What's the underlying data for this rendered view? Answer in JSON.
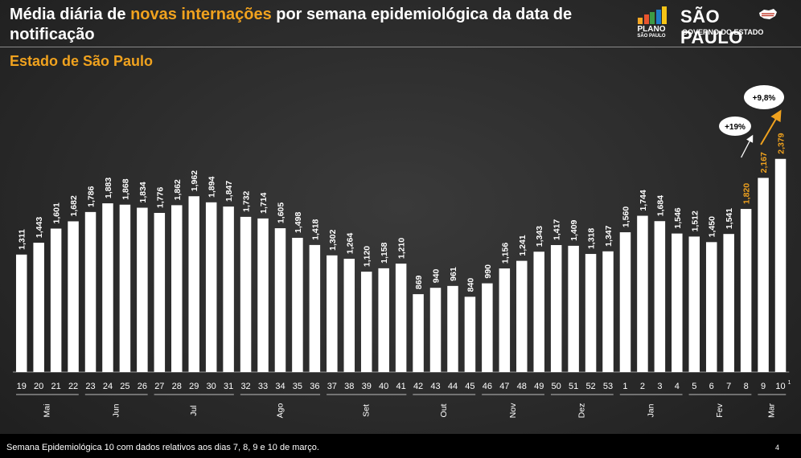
{
  "header": {
    "title_part1": "Média diária de ",
    "title_highlight": "novas internações",
    "title_part2": " por semana epidemiológica da data de notificação",
    "subtitle": "Estado de São Paulo",
    "logo_plano_line1": "PLANO",
    "logo_plano_line2": "SÃO PAULO",
    "logo_sp_line1": "SÃO PAULO",
    "logo_sp_line2": "GOVERNO DO ESTADO"
  },
  "colors": {
    "accent": "#f0a21e",
    "bar": "#ffffff",
    "bar_highlight": "#f0a21e",
    "background": "#2b2b2b",
    "plano_bars": [
      "#f5a623",
      "#e8542f",
      "#3d9b45",
      "#1f7ac7",
      "#f5c518"
    ]
  },
  "chart_data": {
    "type": "bar",
    "title": "Média diária de novas internações por semana epidemiológica da data de notificação",
    "subtitle": "Estado de São Paulo",
    "categories": [
      "19",
      "20",
      "21",
      "22",
      "23",
      "24",
      "25",
      "26",
      "27",
      "28",
      "29",
      "30",
      "31",
      "32",
      "33",
      "34",
      "35",
      "36",
      "37",
      "38",
      "39",
      "40",
      "41",
      "42",
      "43",
      "44",
      "45",
      "46",
      "47",
      "48",
      "49",
      "50",
      "51",
      "52",
      "53",
      "1",
      "2",
      "3",
      "4",
      "5",
      "6",
      "7",
      "8",
      "9",
      "10"
    ],
    "values": [
      1311,
      1443,
      1601,
      1682,
      1786,
      1883,
      1868,
      1834,
      1776,
      1862,
      1962,
      1894,
      1847,
      1732,
      1714,
      1605,
      1498,
      1418,
      1302,
      1264,
      1120,
      1158,
      1210,
      869,
      940,
      961,
      840,
      990,
      1156,
      1241,
      1343,
      1417,
      1409,
      1318,
      1347,
      1560,
      1744,
      1684,
      1546,
      1512,
      1450,
      1541,
      1820,
      2167,
      2379
    ],
    "labels": [
      "1,311",
      "1,443",
      "1,601",
      "1,682",
      "1,786",
      "1,883",
      "1,868",
      "1,834",
      "1,776",
      "1,862",
      "1,962",
      "1,894",
      "1,847",
      "1,732",
      "1,714",
      "1,605",
      "1,498",
      "1,418",
      "1,302",
      "1,264",
      "1,120",
      "1,158",
      "1,210",
      "869",
      "940",
      "961",
      "840",
      "990",
      "1,156",
      "1,241",
      "1,343",
      "1,417",
      "1,409",
      "1,318",
      "1,347",
      "1,560",
      "1,744",
      "1,684",
      "1,546",
      "1,512",
      "1,450",
      "1,541",
      "1,820",
      "2,167",
      "2,379"
    ],
    "highlight_label_indices": [
      42,
      43,
      44
    ],
    "last_category_superscript": "1",
    "month_groups": [
      {
        "name": "Mai",
        "start": 0,
        "end": 3
      },
      {
        "name": "Jun",
        "start": 4,
        "end": 7
      },
      {
        "name": "Jul",
        "start": 8,
        "end": 12
      },
      {
        "name": "Ago",
        "start": 13,
        "end": 17
      },
      {
        "name": "Set",
        "start": 18,
        "end": 22
      },
      {
        "name": "Out",
        "start": 23,
        "end": 26
      },
      {
        "name": "Nov",
        "start": 27,
        "end": 30
      },
      {
        "name": "Dez",
        "start": 31,
        "end": 34
      },
      {
        "name": "Jan",
        "start": 35,
        "end": 38
      },
      {
        "name": "Fev",
        "start": 39,
        "end": 42
      },
      {
        "name": "Mar",
        "start": 43,
        "end": 44
      }
    ],
    "annotations": [
      {
        "text": "+19%",
        "arrow_color": "white",
        "from_index": 42,
        "to_index": 43
      },
      {
        "text": "+9,8%",
        "arrow_color": "orange",
        "from_index": 43,
        "to_index": 44
      }
    ],
    "ylim": [
      0,
      2800
    ],
    "xlabel": "",
    "ylabel": ""
  },
  "footer": {
    "note": "Semana Epidemiológica 10 com dados relativos aos dias 7, 8, 9 e 10 de março.",
    "page_number": "4"
  }
}
